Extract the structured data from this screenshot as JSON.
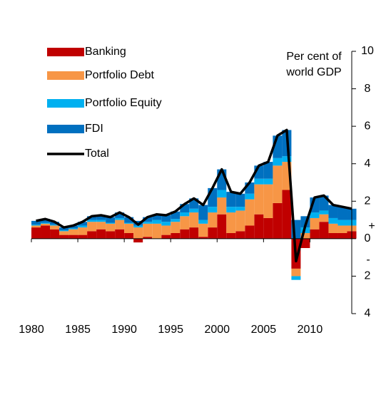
{
  "chart_data": {
    "type": "stacked_bar_line",
    "y_label": [
      "Per cent of",
      "world GDP"
    ],
    "annotations": [
      "+",
      "-"
    ],
    "x": [
      1980,
      1981,
      1982,
      1983,
      1984,
      1985,
      1986,
      1987,
      1988,
      1989,
      1990,
      1991,
      1992,
      1993,
      1994,
      1995,
      1996,
      1997,
      1998,
      1999,
      2000,
      2001,
      2002,
      2003,
      2004,
      2005,
      2006,
      2007,
      2008,
      2009,
      2010,
      2011,
      2012,
      2013,
      2014
    ],
    "series": [
      {
        "name": "Banking",
        "color": "#c00000",
        "values": [
          0.6,
          0.7,
          0.5,
          0.2,
          0.2,
          0.2,
          0.4,
          0.5,
          0.4,
          0.5,
          0.3,
          -0.2,
          0.1,
          0.0,
          0.2,
          0.3,
          0.5,
          0.6,
          0.1,
          0.6,
          1.3,
          0.3,
          0.4,
          0.7,
          1.3,
          1.1,
          1.9,
          2.6,
          -1.6,
          -0.5,
          0.5,
          0.9,
          0.3,
          0.3,
          0.4
        ]
      },
      {
        "name": "Portfolio Debt",
        "color": "#f79646",
        "values": [
          0.1,
          0.1,
          0.2,
          0.2,
          0.3,
          0.4,
          0.5,
          0.4,
          0.4,
          0.5,
          0.5,
          0.6,
          0.7,
          0.8,
          0.5,
          0.6,
          0.7,
          0.8,
          0.7,
          0.8,
          0.9,
          1.1,
          1.1,
          1.4,
          1.6,
          1.8,
          2.0,
          1.5,
          -0.4,
          0.3,
          0.6,
          0.4,
          0.5,
          0.4,
          0.3
        ]
      },
      {
        "name": "Portfolio Equity",
        "color": "#00b0f0",
        "values": [
          0.05,
          0.05,
          0.05,
          0.05,
          0.05,
          0.1,
          0.1,
          0.1,
          0.05,
          0.1,
          0.05,
          0.1,
          0.1,
          0.2,
          0.2,
          0.15,
          0.2,
          0.2,
          0.2,
          0.3,
          0.4,
          0.3,
          0.2,
          0.3,
          0.3,
          0.3,
          0.4,
          0.3,
          -0.2,
          0.3,
          0.3,
          0.2,
          0.3,
          0.3,
          0.3
        ]
      },
      {
        "name": "FDI",
        "color": "#0070c0",
        "values": [
          0.2,
          0.2,
          0.15,
          0.15,
          0.15,
          0.2,
          0.2,
          0.25,
          0.3,
          0.3,
          0.3,
          0.25,
          0.25,
          0.3,
          0.35,
          0.4,
          0.45,
          0.55,
          0.8,
          1.0,
          1.1,
          0.8,
          0.7,
          0.6,
          0.7,
          0.9,
          1.2,
          1.4,
          1.0,
          0.6,
          0.8,
          0.8,
          0.7,
          0.7,
          0.6
        ]
      },
      {
        "name": "Total",
        "color": "#000000",
        "line": true,
        "values": [
          0.95,
          1.05,
          0.9,
          0.6,
          0.7,
          0.9,
          1.2,
          1.25,
          1.15,
          1.4,
          1.15,
          0.75,
          1.15,
          1.3,
          1.25,
          1.45,
          1.85,
          2.15,
          1.8,
          2.7,
          3.7,
          2.5,
          2.4,
          3.0,
          3.9,
          4.1,
          5.5,
          5.8,
          -1.2,
          0.7,
          2.2,
          2.3,
          1.8,
          1.7,
          1.6
        ]
      }
    ],
    "xlim": [
      1980,
      2014.5
    ],
    "xticks": [
      1980,
      1985,
      1990,
      1995,
      2000,
      2005,
      2010
    ],
    "ylim": [
      -4,
      10
    ],
    "yticks": [
      {
        "value": -4,
        "label": "4"
      },
      {
        "value": -2,
        "label": "2"
      },
      0,
      2,
      4,
      6,
      8,
      10
    ],
    "legend": "top-left"
  }
}
